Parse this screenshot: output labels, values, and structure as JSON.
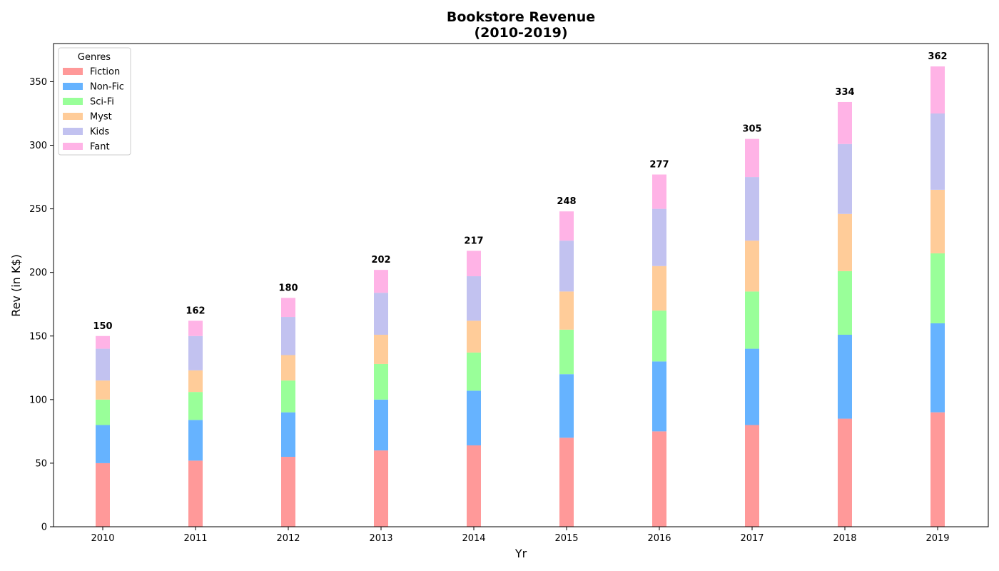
{
  "chart_data": {
    "type": "bar",
    "stacked": true,
    "title_line1": "Bookstore Revenue",
    "title_line2": "(2010-2019)",
    "xlabel": "Yr",
    "ylabel": "Rev (in K$)",
    "ylim": [
      0,
      380
    ],
    "yticks": [
      "0",
      "50",
      "100",
      "150",
      "200",
      "250",
      "300",
      "350"
    ],
    "grid": false,
    "legend_title": "Genres",
    "legend_position": "top-left",
    "categories": [
      "2010",
      "2011",
      "2012",
      "2013",
      "2014",
      "2015",
      "2016",
      "2017",
      "2018",
      "2019"
    ],
    "series": [
      {
        "name": "Fiction",
        "color": "#ff9999",
        "values": [
          50,
          52,
          55,
          60,
          64,
          70,
          75,
          80,
          85,
          90
        ]
      },
      {
        "name": "Non-Fic",
        "color": "#66b3ff",
        "values": [
          30,
          32,
          35,
          40,
          43,
          50,
          55,
          60,
          66,
          70
        ]
      },
      {
        "name": "Sci-Fi",
        "color": "#99ff99",
        "values": [
          20,
          22,
          25,
          28,
          30,
          35,
          40,
          45,
          50,
          55
        ]
      },
      {
        "name": "Myst",
        "color": "#ffcc99",
        "values": [
          15,
          17,
          20,
          23,
          25,
          30,
          35,
          40,
          45,
          50
        ]
      },
      {
        "name": "Kids",
        "color": "#c2c2f0",
        "values": [
          25,
          27,
          30,
          33,
          35,
          40,
          45,
          50,
          55,
          60
        ]
      },
      {
        "name": "Fant",
        "color": "#ffb3e6",
        "values": [
          10,
          12,
          15,
          18,
          20,
          23,
          27,
          30,
          33,
          37
        ]
      }
    ],
    "totals": [
      "150",
      "162",
      "180",
      "202",
      "217",
      "248",
      "277",
      "305",
      "334",
      "362"
    ]
  }
}
